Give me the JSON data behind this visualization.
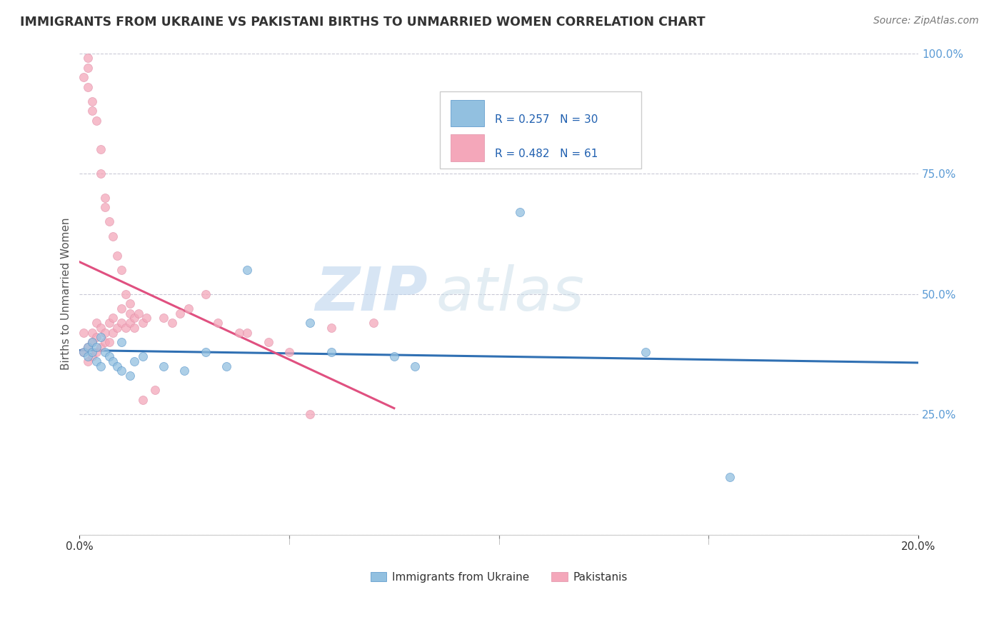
{
  "title": "IMMIGRANTS FROM UKRAINE VS PAKISTANI BIRTHS TO UNMARRIED WOMEN CORRELATION CHART",
  "source": "Source: ZipAtlas.com",
  "xlabel_blue": "Immigrants from Ukraine",
  "xlabel_pink": "Pakistanis",
  "ylabel": "Births to Unmarried Women",
  "R_blue": 0.257,
  "N_blue": 30,
  "R_pink": 0.482,
  "N_pink": 61,
  "xlim": [
    0.0,
    0.2
  ],
  "ylim": [
    0.0,
    1.0
  ],
  "blue_color": "#92c0e0",
  "pink_color": "#f4a7ba",
  "blue_line_color": "#3070b3",
  "pink_line_color": "#e05080",
  "watermark_zip": "ZIP",
  "watermark_atlas": "atlas",
  "background_color": "#ffffff",
  "grid_color": "#bbbbcc",
  "blue_scatter_x": [
    0.001,
    0.002,
    0.002,
    0.003,
    0.003,
    0.004,
    0.004,
    0.005,
    0.005,
    0.006,
    0.007,
    0.008,
    0.009,
    0.01,
    0.01,
    0.012,
    0.013,
    0.015,
    0.02,
    0.025,
    0.03,
    0.035,
    0.04,
    0.055,
    0.06,
    0.075,
    0.08,
    0.105,
    0.135,
    0.155
  ],
  "blue_scatter_y": [
    0.38,
    0.39,
    0.37,
    0.4,
    0.38,
    0.36,
    0.39,
    0.41,
    0.35,
    0.38,
    0.37,
    0.36,
    0.35,
    0.4,
    0.34,
    0.33,
    0.36,
    0.37,
    0.35,
    0.34,
    0.38,
    0.35,
    0.55,
    0.44,
    0.38,
    0.37,
    0.35,
    0.67,
    0.38,
    0.12
  ],
  "pink_scatter_x": [
    0.001,
    0.001,
    0.001,
    0.002,
    0.002,
    0.002,
    0.002,
    0.002,
    0.003,
    0.003,
    0.003,
    0.003,
    0.003,
    0.004,
    0.004,
    0.004,
    0.004,
    0.005,
    0.005,
    0.005,
    0.005,
    0.006,
    0.006,
    0.006,
    0.006,
    0.007,
    0.007,
    0.007,
    0.008,
    0.008,
    0.008,
    0.009,
    0.009,
    0.01,
    0.01,
    0.01,
    0.011,
    0.011,
    0.012,
    0.012,
    0.012,
    0.013,
    0.013,
    0.014,
    0.015,
    0.015,
    0.016,
    0.018,
    0.02,
    0.022,
    0.024,
    0.026,
    0.03,
    0.033,
    0.038,
    0.04,
    0.045,
    0.05,
    0.055,
    0.06,
    0.07
  ],
  "pink_scatter_y": [
    0.38,
    0.42,
    0.95,
    0.36,
    0.39,
    0.97,
    0.99,
    0.93,
    0.4,
    0.37,
    0.9,
    0.88,
    0.42,
    0.38,
    0.41,
    0.86,
    0.44,
    0.39,
    0.43,
    0.8,
    0.75,
    0.4,
    0.42,
    0.7,
    0.68,
    0.4,
    0.65,
    0.44,
    0.42,
    0.62,
    0.45,
    0.43,
    0.58,
    0.44,
    0.47,
    0.55,
    0.43,
    0.5,
    0.44,
    0.48,
    0.46,
    0.45,
    0.43,
    0.46,
    0.44,
    0.28,
    0.45,
    0.3,
    0.45,
    0.44,
    0.46,
    0.47,
    0.5,
    0.44,
    0.42,
    0.42,
    0.4,
    0.38,
    0.25,
    0.43,
    0.44
  ]
}
